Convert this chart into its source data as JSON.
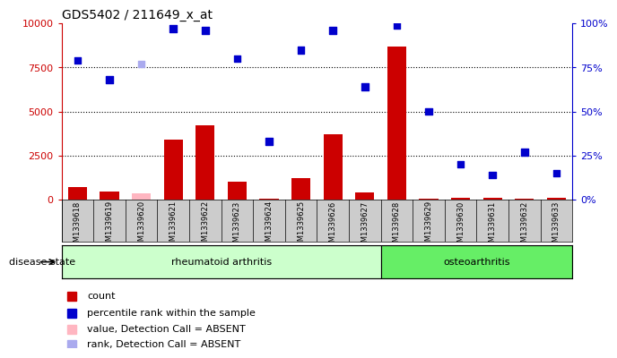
{
  "title": "GDS5402 / 211649_x_at",
  "samples": [
    "GSM1339618",
    "GSM1339619",
    "GSM1339620",
    "GSM1339621",
    "GSM1339622",
    "GSM1339623",
    "GSM1339624",
    "GSM1339625",
    "GSM1339626",
    "GSM1339627",
    "GSM1339628",
    "GSM1339629",
    "GSM1339630",
    "GSM1339631",
    "GSM1339632",
    "GSM1339633"
  ],
  "count_values": [
    700,
    450,
    350,
    3400,
    4200,
    1000,
    50,
    1200,
    3700,
    400,
    8700,
    50,
    100,
    100,
    50,
    80
  ],
  "count_absent": [
    false,
    false,
    true,
    false,
    false,
    false,
    false,
    false,
    false,
    false,
    false,
    false,
    false,
    false,
    false,
    false
  ],
  "percentile_values": [
    79,
    68,
    77,
    97,
    96,
    80,
    33,
    85,
    96,
    64,
    99,
    50,
    20,
    14,
    27,
    15
  ],
  "percentile_absent": [
    false,
    false,
    true,
    false,
    false,
    false,
    false,
    false,
    false,
    false,
    false,
    false,
    false,
    false,
    false,
    false
  ],
  "rheumatoid_count": 10,
  "osteoarthritis_count": 6,
  "ylim_left": [
    0,
    10000
  ],
  "ylim_right": [
    0,
    100
  ],
  "yticks_left": [
    0,
    2500,
    5000,
    7500,
    10000
  ],
  "yticks_right": [
    0,
    25,
    50,
    75,
    100
  ],
  "bar_color_present": "#CC0000",
  "bar_color_absent": "#FFB6C1",
  "scatter_color_present": "#0000CC",
  "scatter_color_absent": "#AAAAEE",
  "rheumatoid_color": "#CCFFCC",
  "osteoarthritis_color": "#66EE66",
  "label_color_left": "#CC0000",
  "label_color_right": "#0000CC",
  "tick_area_color": "#CCCCCC",
  "gridline_color": "#000000",
  "legend_items": [
    {
      "color": "#CC0000",
      "label": "count",
      "marker": "s"
    },
    {
      "color": "#0000CC",
      "label": "percentile rank within the sample",
      "marker": "s"
    },
    {
      "color": "#FFB6C1",
      "label": "value, Detection Call = ABSENT",
      "marker": "s"
    },
    {
      "color": "#AAAAEE",
      "label": "rank, Detection Call = ABSENT",
      "marker": "s"
    }
  ]
}
